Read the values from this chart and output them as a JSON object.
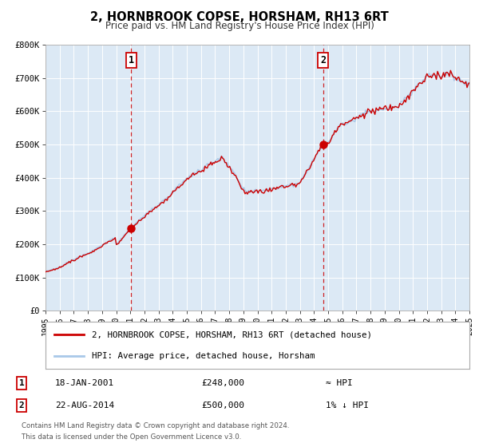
{
  "title": "2, HORNBROOK COPSE, HORSHAM, RH13 6RT",
  "subtitle": "Price paid vs. HM Land Registry's House Price Index (HPI)",
  "background_color": "#ffffff",
  "plot_bg_color": "#dce9f5",
  "grid_color": "#ffffff",
  "ylim": [
    0,
    800000
  ],
  "yticks": [
    0,
    100000,
    200000,
    300000,
    400000,
    500000,
    600000,
    700000,
    800000
  ],
  "ytick_labels": [
    "£0",
    "£100K",
    "£200K",
    "£300K",
    "£400K",
    "£500K",
    "£600K",
    "£700K",
    "£800K"
  ],
  "sale1_date_num": 2001.05,
  "sale1_price": 248000,
  "sale1_label": "1",
  "sale2_date_num": 2014.64,
  "sale2_price": 500000,
  "sale2_label": "2",
  "hpi_color": "#a8c8e8",
  "price_color": "#cc0000",
  "sale_marker_color": "#cc0000",
  "vline_color": "#cc0000",
  "legend_entry1": "2, HORNBROOK COPSE, HORSHAM, RH13 6RT (detached house)",
  "legend_entry2": "HPI: Average price, detached house, Horsham",
  "annotation1_date": "18-JAN-2001",
  "annotation1_price": "£248,000",
  "annotation1_hpi": "≈ HPI",
  "annotation2_date": "22-AUG-2014",
  "annotation2_price": "£500,000",
  "annotation2_hpi": "1% ↓ HPI",
  "footer1": "Contains HM Land Registry data © Crown copyright and database right 2024.",
  "footer2": "This data is licensed under the Open Government Licence v3.0.",
  "xstart": 1995,
  "xend": 2025
}
